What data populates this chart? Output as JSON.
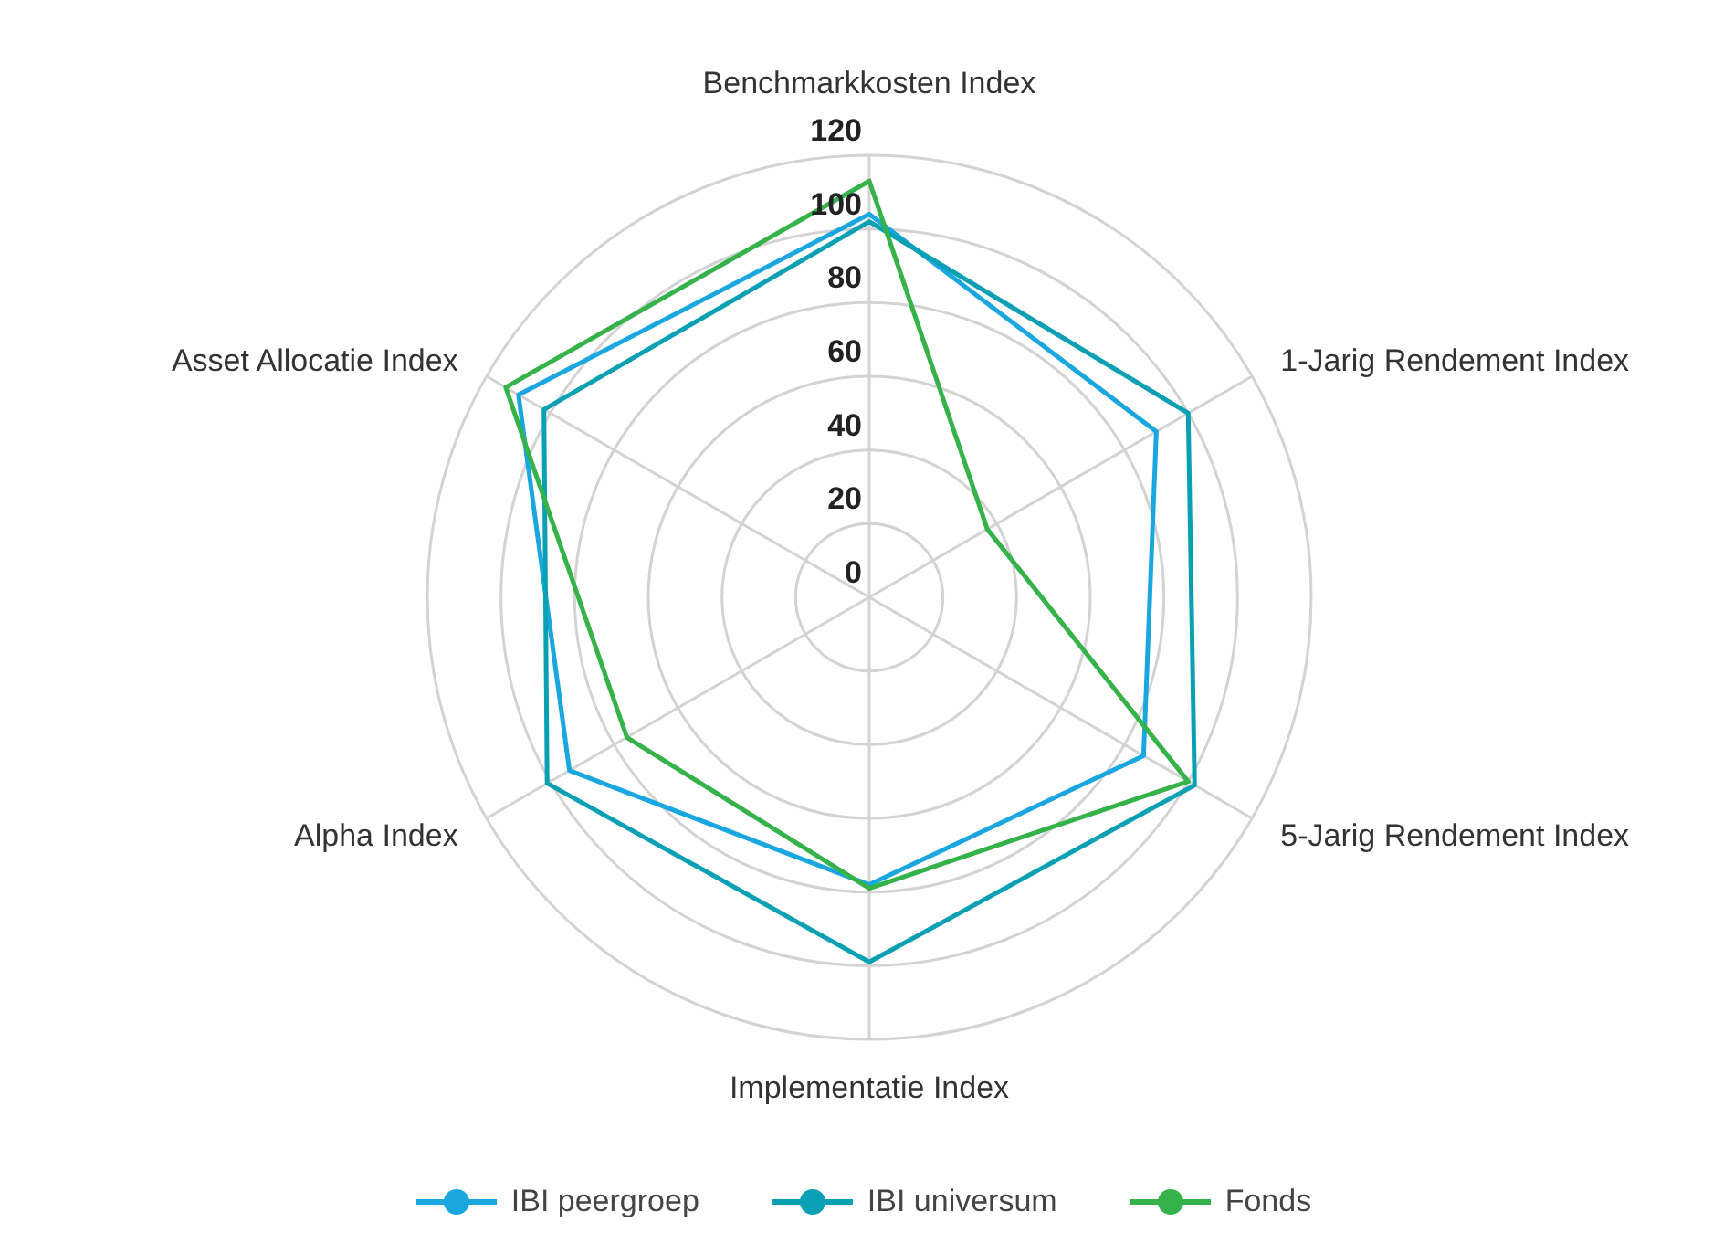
{
  "chart_data": {
    "type": "radar",
    "categories": [
      "Benchmarkkosten Index",
      "1-Jarig Rendement Index",
      "5-Jarig Rendement Index",
      "Implementatie Index",
      "Alpha Index",
      "Asset Allocatie Index"
    ],
    "series": [
      {
        "name": "IBI peergroep",
        "color": "#1aa7e0",
        "values": [
          104,
          90,
          86,
          78,
          94,
          110
        ]
      },
      {
        "name": "IBI universum",
        "color": "#0aa0b4",
        "values": [
          102,
          100,
          102,
          99,
          101,
          102
        ]
      },
      {
        "name": "Fonds",
        "color": "#35b34a",
        "values": [
          113,
          37,
          100,
          79,
          76,
          114
        ]
      }
    ],
    "ylim": [
      0,
      120
    ],
    "yticks": [
      0,
      20,
      40,
      60,
      80,
      100,
      120
    ],
    "grid": true,
    "legend": "bottom",
    "marker": "circle",
    "line_style": "solid"
  }
}
